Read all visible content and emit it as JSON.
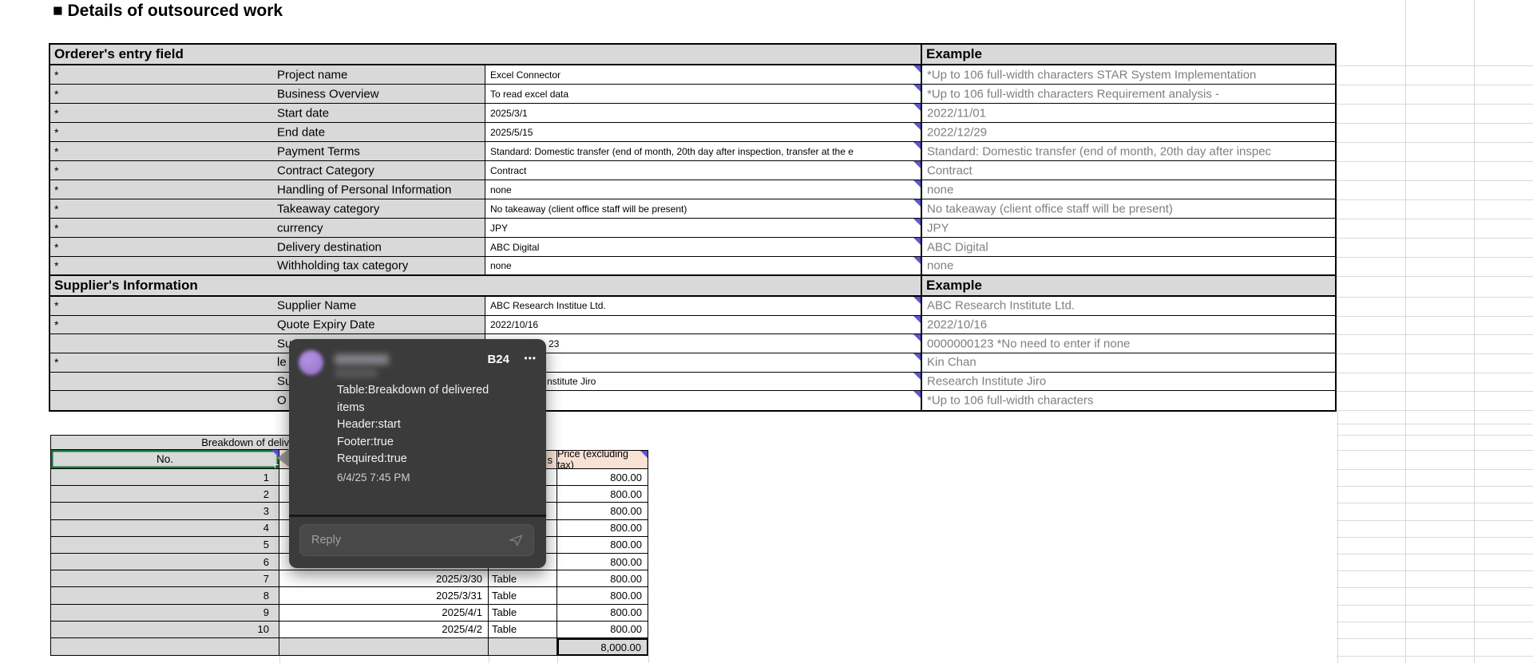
{
  "title": "■ Details of outsourced work",
  "colors": {
    "cell_gray": "#d9d9d9",
    "input_peach": "#f8e2d4",
    "selection_green": "#1a7240",
    "comment_indicator_purple": "#5a56d6",
    "popup_background": "#3b3b3b",
    "example_text_gray": "#7f7f7f"
  },
  "table1": {
    "header": {
      "left": "Orderer's entry field",
      "example": "Example"
    },
    "rows": [
      {
        "ast": "*",
        "label": "Project name",
        "value": "Excel Connector",
        "example": "*Up to 106 full-width characters STAR System Implementation"
      },
      {
        "ast": "*",
        "label": "Business Overview",
        "value": "To read excel data",
        "example": "*Up to 106 full-width characters Requirement analysis -"
      },
      {
        "ast": "*",
        "label": "Start date",
        "value": "2025/3/1",
        "example": "2022/11/01"
      },
      {
        "ast": "*",
        "label": "End date",
        "value": "2025/5/15",
        "example": "2022/12/29"
      },
      {
        "ast": "*",
        "label": "Payment Terms",
        "value": "Standard: Domestic transfer (end of month, 20th day after inspection, transfer at the e",
        "example": "Standard: Domestic transfer (end of month, 20th day after inspec"
      },
      {
        "ast": "*",
        "label": "Contract Category",
        "value": "Contract",
        "example": "Contract"
      },
      {
        "ast": "*",
        "label": "Handling of Personal Information",
        "value": "none",
        "example": "none"
      },
      {
        "ast": "*",
        "label": "Takeaway category",
        "value": "No takeaway (client office staff will be present)",
        "example": "No takeaway (client office staff will be present)"
      },
      {
        "ast": "*",
        "label": "currency",
        "value": "JPY",
        "example": "JPY"
      },
      {
        "ast": "*",
        "label": "Delivery destination",
        "value": "ABC Digital",
        "example": "ABC Digital"
      },
      {
        "ast": "*",
        "label": "Withholding tax category",
        "value": "none",
        "example": "none"
      }
    ],
    "supplier_header": {
      "left": "Supplier's Information",
      "example": "Example"
    },
    "supplier_rows": [
      {
        "ast": "*",
        "label": "Supplier Name",
        "value": "ABC Research Institue Ltd.",
        "example": "ABC Research Institute Ltd."
      },
      {
        "ast": "*",
        "label": "Quote Expiry Date",
        "value": "2022/10/16",
        "example": "2022/10/16"
      },
      {
        "ast": "",
        "label": "Su",
        "value": "23",
        "example": "0000000123 *No need to enter if none"
      },
      {
        "ast": "*",
        "label": "le",
        "value": "",
        "example": "Kin Chan"
      },
      {
        "ast": "",
        "label": "Su",
        "value": "nstitute Jiro",
        "example": "Research Institute Jiro"
      },
      {
        "ast": "",
        "label": "O",
        "value": "",
        "example": "*Up to 106 full-width characters"
      }
    ]
  },
  "table2": {
    "banner": "Breakdown of delivered items",
    "headers": {
      "no": "No.",
      "date": "",
      "item": "s",
      "price": "Price (excluding tax)"
    },
    "rows": [
      {
        "no": "1",
        "date": "",
        "item": "",
        "price": "800.00"
      },
      {
        "no": "2",
        "date": "",
        "item": "",
        "price": "800.00"
      },
      {
        "no": "3",
        "date": "",
        "item": "",
        "price": "800.00"
      },
      {
        "no": "4",
        "date": "",
        "item": "",
        "price": "800.00"
      },
      {
        "no": "5",
        "date": "",
        "item": "",
        "price": "800.00"
      },
      {
        "no": "6",
        "date": "",
        "item": "",
        "price": "800.00"
      },
      {
        "no": "7",
        "date": "2025/3/30",
        "item": "Table",
        "price": "800.00"
      },
      {
        "no": "8",
        "date": "2025/3/31",
        "item": "Table",
        "price": "800.00"
      },
      {
        "no": "9",
        "date": "2025/4/1",
        "item": "Table",
        "price": "800.00"
      },
      {
        "no": "10",
        "date": "2025/4/2",
        "item": "Table",
        "price": "800.00"
      }
    ],
    "total": "8,000.00"
  },
  "comment": {
    "cell_ref": "B24",
    "menu": "•••",
    "text": "Table:Breakdown of delivered\nitems\nHeader:start\nFooter:true\nRequired:true",
    "timestamp": "6/4/25 7:45 PM",
    "reply_placeholder": "Reply"
  }
}
